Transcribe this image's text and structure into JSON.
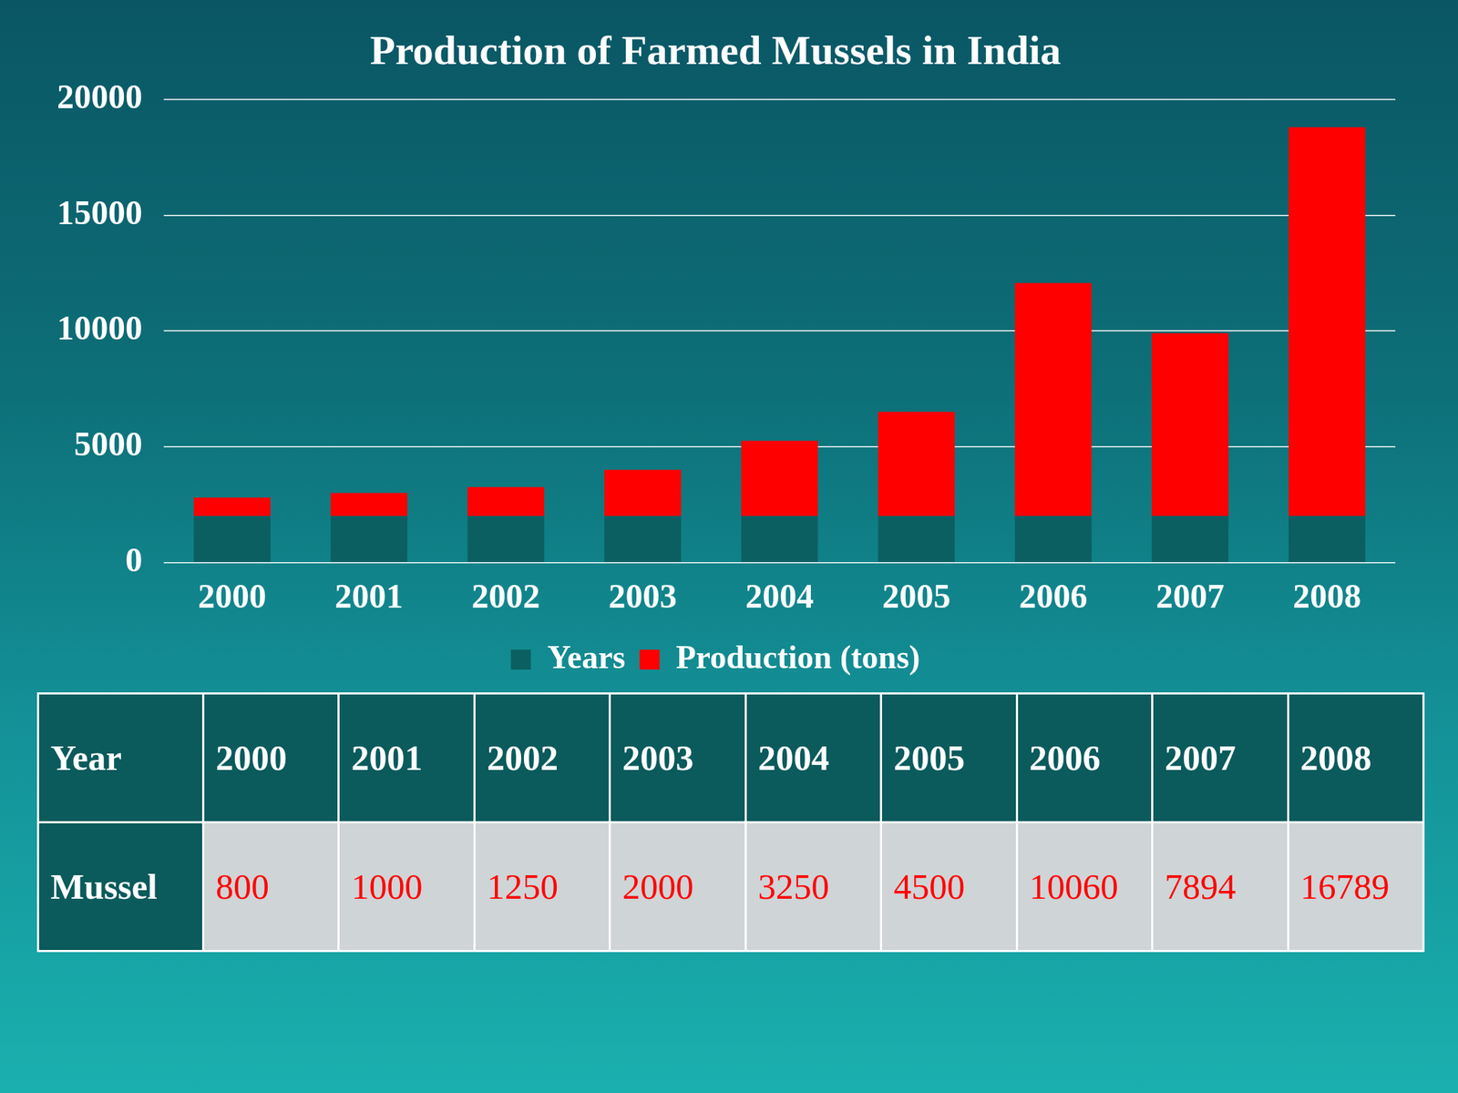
{
  "chart_data": {
    "type": "bar",
    "title": "Production of Farmed Mussels in India",
    "categories": [
      "2000",
      "2001",
      "2002",
      "2003",
      "2004",
      "2005",
      "2006",
      "2007",
      "2008"
    ],
    "series": [
      {
        "name": "Years",
        "color": "#0b5f61",
        "values": [
          2000,
          2001,
          2002,
          2003,
          2004,
          2005,
          2006,
          2007,
          2008
        ]
      },
      {
        "name": "Production (tons)",
        "color": "#ff0000",
        "values": [
          800,
          1000,
          1250,
          2000,
          3250,
          4500,
          10060,
          7894,
          16789
        ]
      }
    ],
    "ylim": [
      0,
      20000
    ],
    "yticks": [
      0,
      5000,
      10000,
      15000,
      20000
    ],
    "grid": true,
    "stacked": true,
    "legend": "bottom"
  },
  "table": {
    "header": [
      "Year",
      "2000",
      "2001",
      "2002",
      "2003",
      "2004",
      "2005",
      "2006",
      "2007",
      "2008"
    ],
    "rows": [
      [
        "Mussel",
        "800",
        "1000",
        "1250",
        "2000",
        "3250",
        "4500",
        "10060",
        "7894",
        "16789"
      ]
    ]
  }
}
